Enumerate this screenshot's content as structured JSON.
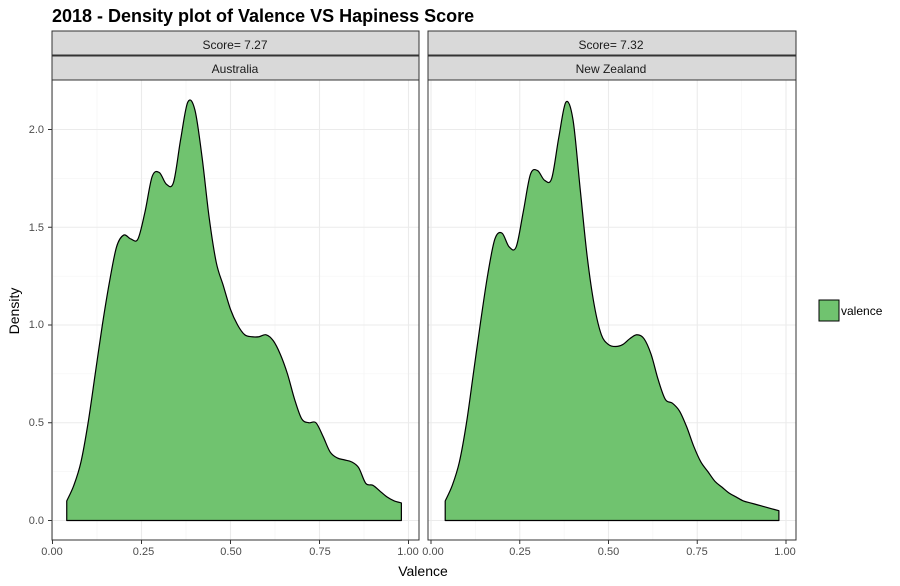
{
  "chart_data": {
    "type": "area",
    "title": "2018 - Density plot of Valence VS Hapiness Score",
    "xlabel": "Valence",
    "ylabel": "Density",
    "xlim": [
      0,
      1
    ],
    "ylim": [
      0,
      2.25
    ],
    "x_ticks": [
      "0.00",
      "0.25",
      "0.50",
      "0.75",
      "1.00"
    ],
    "y_ticks": [
      "0.0",
      "0.5",
      "1.0",
      "1.5",
      "2.0"
    ],
    "grid": true,
    "legend": {
      "position": "right",
      "entries": [
        "valence"
      ]
    },
    "colors": {
      "fill": "#70c36f",
      "outline": "#000000",
      "strip_bg": "#d9d9d9"
    },
    "panels": [
      {
        "strip_top": "Score= 7.27",
        "strip_bottom": "Australia",
        "x": [
          0.04,
          0.06,
          0.08,
          0.1,
          0.12,
          0.14,
          0.16,
          0.18,
          0.2,
          0.22,
          0.24,
          0.26,
          0.28,
          0.3,
          0.32,
          0.34,
          0.36,
          0.38,
          0.4,
          0.42,
          0.44,
          0.46,
          0.48,
          0.5,
          0.52,
          0.54,
          0.56,
          0.58,
          0.6,
          0.62,
          0.64,
          0.66,
          0.68,
          0.7,
          0.72,
          0.74,
          0.76,
          0.78,
          0.8,
          0.82,
          0.84,
          0.86,
          0.88,
          0.9,
          0.92,
          0.94,
          0.96,
          0.98
        ],
        "y": [
          0.1,
          0.18,
          0.3,
          0.5,
          0.75,
          1.0,
          1.22,
          1.4,
          1.46,
          1.44,
          1.44,
          1.58,
          1.76,
          1.78,
          1.72,
          1.73,
          1.95,
          2.14,
          2.1,
          1.86,
          1.55,
          1.32,
          1.2,
          1.08,
          1.0,
          0.95,
          0.94,
          0.94,
          0.95,
          0.92,
          0.85,
          0.75,
          0.62,
          0.52,
          0.5,
          0.5,
          0.43,
          0.35,
          0.32,
          0.31,
          0.3,
          0.27,
          0.19,
          0.18,
          0.15,
          0.12,
          0.1,
          0.09
        ]
      },
      {
        "strip_top": "Score= 7.32",
        "strip_bottom": "New Zealand",
        "x": [
          0.04,
          0.06,
          0.08,
          0.1,
          0.12,
          0.14,
          0.16,
          0.18,
          0.2,
          0.22,
          0.24,
          0.26,
          0.28,
          0.3,
          0.32,
          0.34,
          0.36,
          0.38,
          0.4,
          0.42,
          0.44,
          0.46,
          0.48,
          0.5,
          0.52,
          0.54,
          0.56,
          0.58,
          0.6,
          0.62,
          0.64,
          0.66,
          0.68,
          0.7,
          0.72,
          0.74,
          0.76,
          0.78,
          0.8,
          0.82,
          0.84,
          0.86,
          0.88,
          0.9,
          0.92,
          0.94,
          0.96,
          0.98
        ],
        "y": [
          0.1,
          0.18,
          0.3,
          0.5,
          0.76,
          1.02,
          1.26,
          1.44,
          1.47,
          1.4,
          1.4,
          1.58,
          1.77,
          1.79,
          1.74,
          1.75,
          1.96,
          2.14,
          2.05,
          1.7,
          1.35,
          1.1,
          0.95,
          0.9,
          0.89,
          0.9,
          0.93,
          0.95,
          0.93,
          0.85,
          0.72,
          0.62,
          0.6,
          0.56,
          0.48,
          0.38,
          0.3,
          0.25,
          0.2,
          0.17,
          0.14,
          0.12,
          0.1,
          0.09,
          0.08,
          0.07,
          0.06,
          0.05
        ]
      }
    ]
  }
}
